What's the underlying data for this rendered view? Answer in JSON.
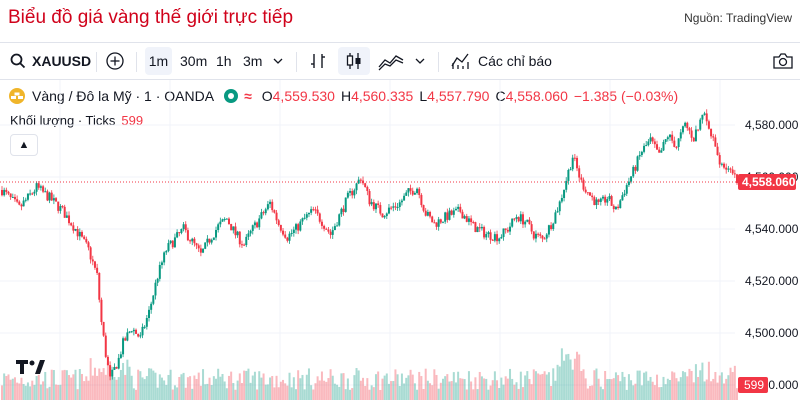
{
  "header": {
    "title": "Biểu đồ giá vàng thế giới trực tiếp",
    "source": "Nguồn: TradingView"
  },
  "toolbar": {
    "symbol": "XAUUSD",
    "intervals": [
      "1m",
      "30m",
      "1h",
      "3m"
    ],
    "selected_interval": "1m",
    "indicators_label": "Các chỉ báo"
  },
  "legend": {
    "name": "Vàng / Đô la Mỹ · 1 · OANDA",
    "o_label": "O",
    "o": "4,559.530",
    "h_label": "H",
    "h": "4,560.335",
    "l_label": "L",
    "l": "4,557.790",
    "c_label": "C",
    "c": "4,558.060",
    "change": "−1.385 (−0.03%)"
  },
  "volume": {
    "label": "Khối lượng · Ticks",
    "value": "599"
  },
  "price_axis": {
    "ticks": [
      "4,580.000",
      "4,560.000",
      "4,540.000",
      "4,520.000",
      "4,500.000",
      "4,480.000"
    ]
  },
  "current_price": "4,558.060",
  "current_volume": "599",
  "colors": {
    "up": "#089981",
    "down": "#f23645",
    "title": "#d0021b"
  },
  "chart_data": {
    "type": "candlestick",
    "ylim": [
      4472,
      4592
    ],
    "last_price": 4558.06,
    "close_path": [
      [
        0,
        4555
      ],
      [
        4,
        4548
      ],
      [
        8,
        4556
      ],
      [
        11,
        4552
      ],
      [
        14,
        4547
      ],
      [
        17,
        4540
      ],
      [
        20,
        4532
      ],
      [
        22,
        4522
      ],
      [
        23,
        4504
      ],
      [
        24,
        4492
      ],
      [
        25,
        4482
      ],
      [
        26,
        4486
      ],
      [
        27,
        4490
      ],
      [
        28,
        4496
      ],
      [
        30,
        4502
      ],
      [
        32,
        4498
      ],
      [
        34,
        4508
      ],
      [
        36,
        4522
      ],
      [
        38,
        4532
      ],
      [
        40,
        4536
      ],
      [
        42,
        4540
      ],
      [
        44,
        4535
      ],
      [
        46,
        4530
      ],
      [
        48,
        4536
      ],
      [
        50,
        4541
      ],
      [
        52,
        4544
      ],
      [
        54,
        4538
      ],
      [
        56,
        4534
      ],
      [
        58,
        4540
      ],
      [
        60,
        4545
      ],
      [
        62,
        4550
      ],
      [
        64,
        4542
      ],
      [
        66,
        4537
      ],
      [
        68,
        4540
      ],
      [
        70,
        4544
      ],
      [
        72,
        4547
      ],
      [
        74,
        4543
      ],
      [
        76,
        4538
      ],
      [
        78,
        4545
      ],
      [
        80,
        4552
      ],
      [
        82,
        4557
      ],
      [
        83,
        4560
      ],
      [
        85,
        4551
      ],
      [
        88,
        4546
      ],
      [
        90,
        4548
      ],
      [
        92,
        4550
      ],
      [
        94,
        4554
      ],
      [
        96,
        4556
      ],
      [
        98,
        4546
      ],
      [
        100,
        4542
      ],
      [
        103,
        4545
      ],
      [
        106,
        4547
      ],
      [
        109,
        4541
      ],
      [
        112,
        4538
      ],
      [
        115,
        4537
      ],
      [
        117,
        4540
      ],
      [
        119,
        4545
      ],
      [
        121,
        4543
      ],
      [
        123,
        4538
      ],
      [
        125,
        4536
      ],
      [
        127,
        4542
      ],
      [
        129,
        4550
      ],
      [
        131,
        4562
      ],
      [
        132,
        4568
      ],
      [
        134,
        4558
      ],
      [
        136,
        4553
      ],
      [
        138,
        4549
      ],
      [
        140,
        4552
      ],
      [
        142,
        4547
      ],
      [
        144,
        4555
      ],
      [
        146,
        4562
      ],
      [
        148,
        4570
      ],
      [
        150,
        4574
      ],
      [
        152,
        4568
      ],
      [
        154,
        4576
      ],
      [
        156,
        4572
      ],
      [
        158,
        4580
      ],
      [
        160,
        4575
      ],
      [
        162,
        4585
      ],
      [
        164,
        4576
      ],
      [
        166,
        4566
      ],
      [
        168,
        4563
      ],
      [
        170,
        4558
      ]
    ]
  }
}
